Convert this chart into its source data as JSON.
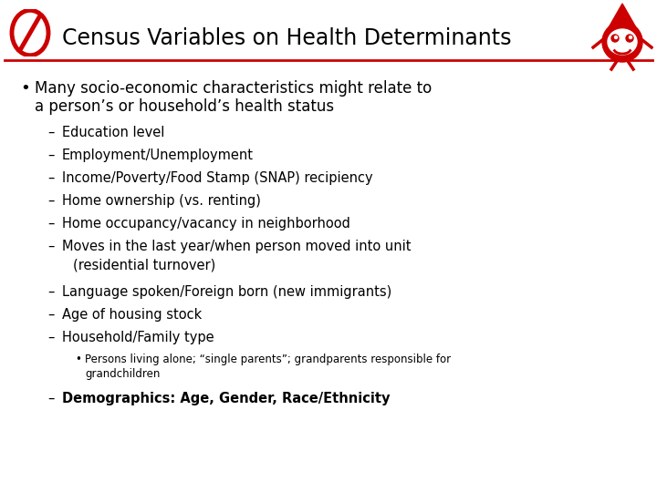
{
  "title": "Census Variables on Health Determinants",
  "background_color": "#ffffff",
  "title_color": "#000000",
  "title_fontsize": 17,
  "header_line_color": "#cc0000",
  "bullet_main_line1": "Many socio-economic characteristics might relate to",
  "bullet_main_line2": "a person’s or household’s health status",
  "sub_items": [
    "Education level",
    "Employment/Unemployment",
    "Income/Poverty/Food Stamp (SNAP) recipiency",
    "Home ownership (vs. renting)",
    "Home occupancy/vacancy in neighborhood",
    "Moves in the last year/when person moved into unit",
    "(residential turnover)",
    "Language spoken/Foreign born (new immigrants)",
    "Age of housing stock",
    "Household/Family type"
  ],
  "sub_sub_item_line1": "Persons living alone; “single parents”; grandparents responsible for",
  "sub_sub_item_line2": "grandchildren",
  "final_item": "Demographics: Age, Gender, Race/Ethnicity",
  "logo_color": "#cc0000",
  "text_color": "#000000"
}
